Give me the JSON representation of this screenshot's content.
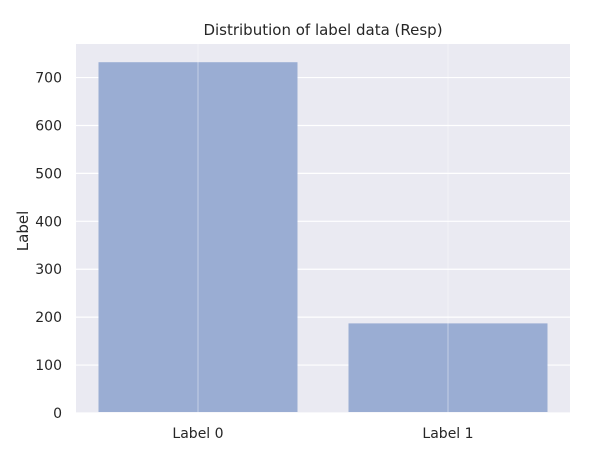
{
  "chart_data": {
    "type": "bar",
    "title": "Distribution of label data (Resp)",
    "xlabel": "",
    "ylabel": "Label",
    "categories": [
      "Label 0",
      "Label 1"
    ],
    "values": [
      732,
      187
    ],
    "ylim": [
      0,
      770
    ],
    "yticks": [
      0,
      100,
      200,
      300,
      400,
      500,
      600,
      700
    ],
    "grid": true,
    "legend": "none",
    "colors": {
      "background": "#eaeaf2",
      "bar": "#9aadd3",
      "grid": "#ffffff",
      "text": "#262626"
    }
  }
}
